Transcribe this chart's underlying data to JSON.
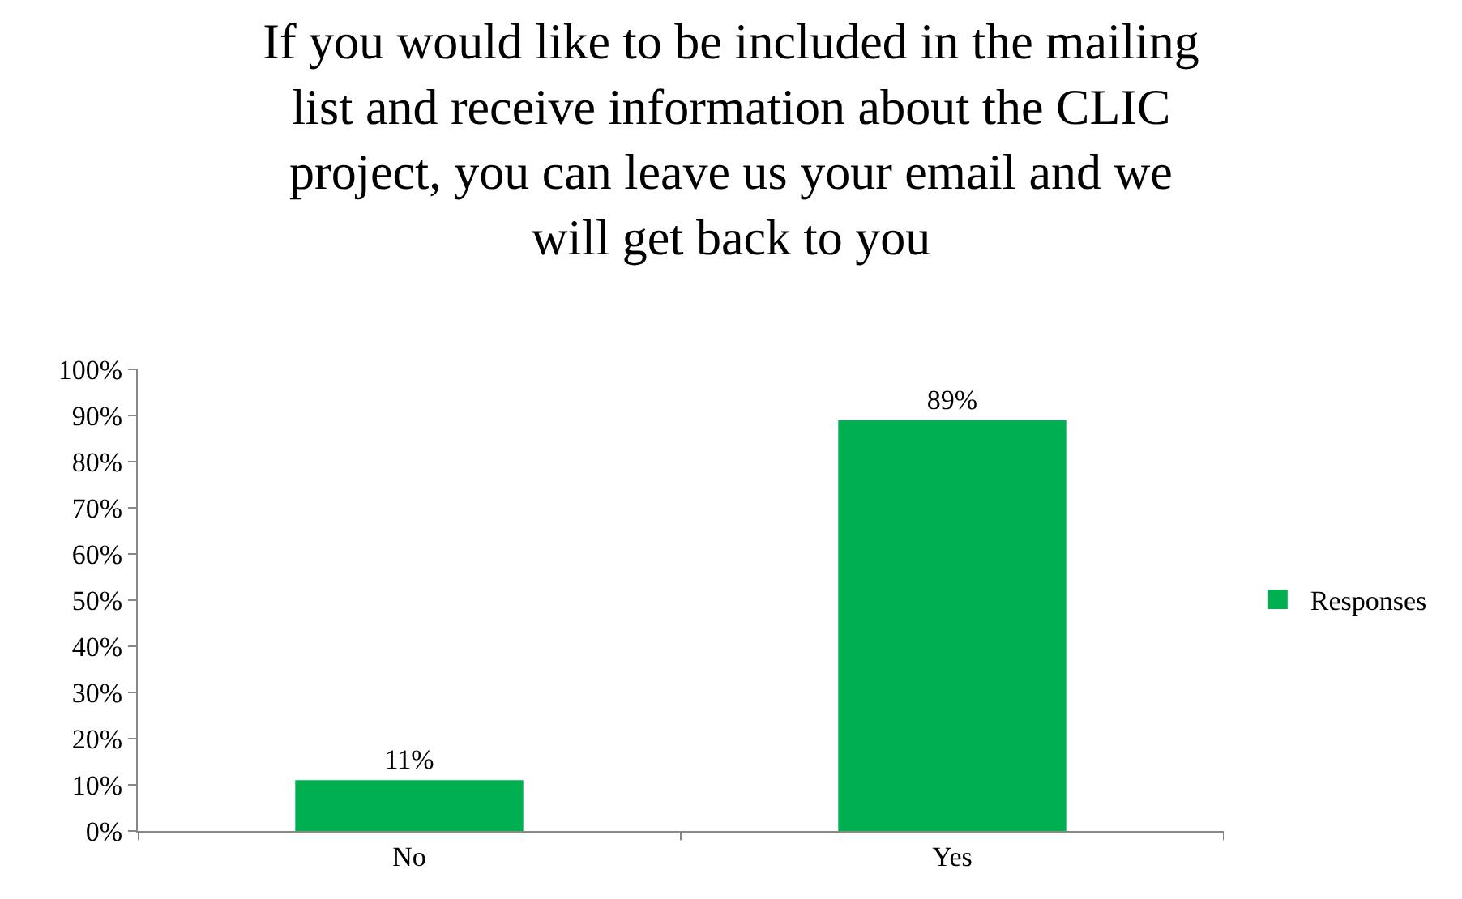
{
  "chart_data": {
    "type": "bar",
    "title": "If you would like to be included in the mailing\nlist and receive information about the CLIC\nproject, you can leave us your email and we\nwill get back to you",
    "categories": [
      "No",
      "Yes"
    ],
    "series": [
      {
        "name": "Responses",
        "color": "#00b050",
        "values": [
          11,
          89
        ],
        "value_labels": [
          "11%",
          "89%"
        ]
      }
    ],
    "ylim": [
      0,
      100
    ],
    "yticks": [
      {
        "value": 0,
        "label": "0%"
      },
      {
        "value": 10,
        "label": "10%"
      },
      {
        "value": 20,
        "label": "20%"
      },
      {
        "value": 30,
        "label": "30%"
      },
      {
        "value": 40,
        "label": "40%"
      },
      {
        "value": 50,
        "label": "50%"
      },
      {
        "value": 60,
        "label": "60%"
      },
      {
        "value": 70,
        "label": "70%"
      },
      {
        "value": 80,
        "label": "80%"
      },
      {
        "value": 90,
        "label": "90%"
      },
      {
        "value": 100,
        "label": "100%"
      }
    ],
    "grid": false,
    "legend": "right"
  }
}
